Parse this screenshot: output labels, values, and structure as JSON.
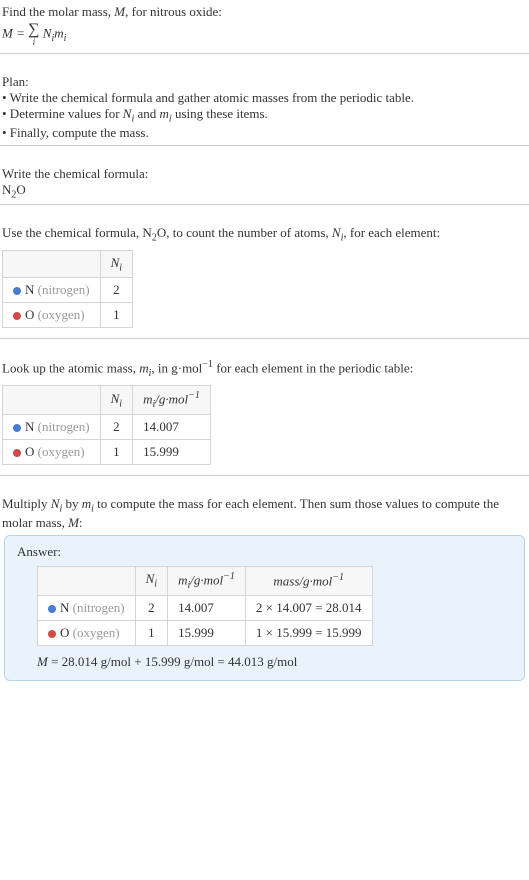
{
  "header": {
    "line1_pre": "Find the molar mass, ",
    "line1_var": "M",
    "line1_post": ", for nitrous oxide:",
    "eq_left": "M",
    "eq_eq": " = ",
    "eq_sigma": "∑",
    "eq_sigma_sub": "i",
    "eq_right1": "N",
    "eq_right1_sub": "i",
    "eq_right2": "m",
    "eq_right2_sub": "i"
  },
  "plan": {
    "title": "Plan:",
    "b1": "• Write the chemical formula and gather atomic masses from the periodic table.",
    "b2_pre": "• Determine values for ",
    "b2_v1": "N",
    "b2_v1s": "i",
    "b2_mid": " and ",
    "b2_v2": "m",
    "b2_v2s": "i",
    "b2_post": " using these items.",
    "b3": "• Finally, compute the mass."
  },
  "chem": {
    "title": "Write the chemical formula:",
    "f1": "N",
    "f1s": "2",
    "f2": "O"
  },
  "count": {
    "title_pre": "Use the chemical formula, ",
    "title_f1": "N",
    "title_f1s": "2",
    "title_f2": "O",
    "title_mid": ", to count the number of atoms, ",
    "title_v": "N",
    "title_vs": "i",
    "title_post": ", for each element:"
  },
  "lookup": {
    "pre": "Look up the atomic mass, ",
    "v": "m",
    "vs": "i",
    "mid": ", in g·mol",
    "exp": "−1",
    "post": " for each element in the periodic table:"
  },
  "multiply": {
    "pre": "Multiply ",
    "v1": "N",
    "v1s": "i",
    "mid1": " by ",
    "v2": "m",
    "v2s": "i",
    "mid2": " to compute the mass for each element. Then sum those values to compute the molar mass, ",
    "v3": "M",
    "post": ":"
  },
  "colors": {
    "nitrogen": "#4a7bd0",
    "oxygen": "#d04a4a",
    "answer_bg": "#eaf3fb",
    "answer_border": "#b8d4e8",
    "row_alt": "#f7f7f7",
    "border": "#d5d5d5"
  },
  "headers": {
    "Ni": "N",
    "Ni_s": "i",
    "mi": "m",
    "mi_s": "i",
    "unit": "/g·mol",
    "unit_exp": "−1",
    "mass": "mass/g·mol",
    "mass_exp": "−1"
  },
  "elements": {
    "n_sym": "N",
    "n_name": " (nitrogen)",
    "o_sym": "O",
    "o_name": " (oxygen)"
  },
  "ni": {
    "n": "2",
    "o": "1"
  },
  "mi": {
    "n": "14.007",
    "o": "15.999"
  },
  "mass": {
    "n": "2 × 14.007 = 28.014",
    "o": "1 × 15.999 = 15.999"
  },
  "answer": {
    "label": "Answer:",
    "eq_left": "M",
    "eq": " = 28.014 g/mol + 15.999 g/mol = 44.013 g/mol"
  }
}
